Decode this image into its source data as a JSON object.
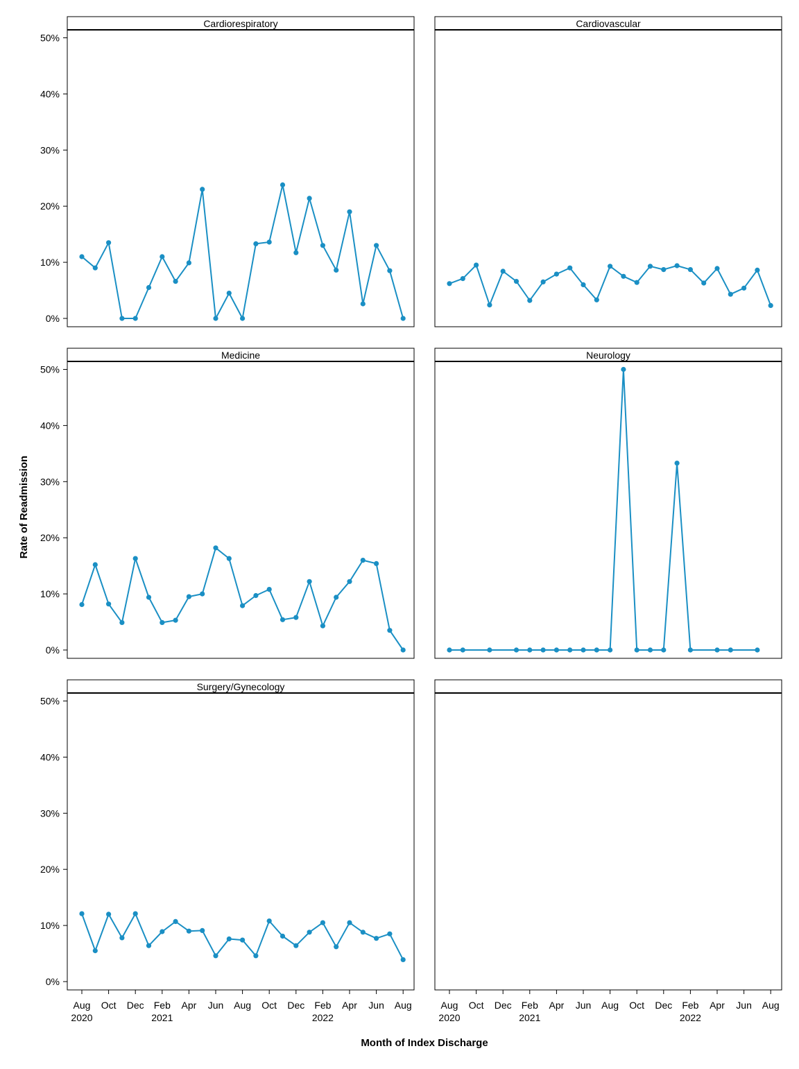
{
  "chart_data": {
    "type": "line",
    "ylabel": "Rate of Readmission",
    "xlabel": "Month of Index Discharge",
    "y_unit": "%",
    "ylim": [
      0,
      50
    ],
    "y_ticks": [
      0,
      10,
      20,
      30,
      40,
      50
    ],
    "y_tick_labels": [
      "0%",
      "10%",
      "20%",
      "30%",
      "40%",
      "50%"
    ],
    "x_months": [
      "2020-08",
      "2020-09",
      "2020-10",
      "2020-11",
      "2020-12",
      "2021-01",
      "2021-02",
      "2021-03",
      "2021-04",
      "2021-05",
      "2021-06",
      "2021-07",
      "2021-08",
      "2021-09",
      "2021-10",
      "2021-11",
      "2021-12",
      "2022-01",
      "2022-02",
      "2022-03",
      "2022-04",
      "2022-05",
      "2022-06",
      "2022-07",
      "2022-08"
    ],
    "x_ticks": [
      {
        "month": "2020-08",
        "label": "Aug",
        "year": "2020"
      },
      {
        "month": "2020-10",
        "label": "Oct",
        "year": ""
      },
      {
        "month": "2020-12",
        "label": "Dec",
        "year": ""
      },
      {
        "month": "2021-02",
        "label": "Feb",
        "year": "2021"
      },
      {
        "month": "2021-04",
        "label": "Apr",
        "year": ""
      },
      {
        "month": "2021-06",
        "label": "Jun",
        "year": ""
      },
      {
        "month": "2021-08",
        "label": "Aug",
        "year": ""
      },
      {
        "month": "2021-10",
        "label": "Oct",
        "year": ""
      },
      {
        "month": "2021-12",
        "label": "Dec",
        "year": ""
      },
      {
        "month": "2022-02",
        "label": "Feb",
        "year": "2022"
      },
      {
        "month": "2022-04",
        "label": "Apr",
        "year": ""
      },
      {
        "month": "2022-06",
        "label": "Jun",
        "year": ""
      },
      {
        "month": "2022-08",
        "label": "Aug",
        "year": ""
      }
    ],
    "line_color": "#1a8fc4",
    "panels": [
      {
        "name": "Cardiorespiratory",
        "values": [
          11.0,
          9.0,
          13.5,
          0.0,
          0.0,
          5.5,
          11.0,
          6.6,
          9.9,
          23.0,
          0.0,
          4.5,
          0.0,
          13.3,
          13.6,
          23.8,
          11.7,
          21.4,
          13.0,
          8.6,
          19.0,
          2.6,
          13.0,
          8.5,
          0.0
        ]
      },
      {
        "name": "Cardiovascular",
        "values": [
          6.2,
          7.1,
          9.5,
          2.4,
          8.4,
          6.6,
          3.2,
          6.5,
          7.9,
          9.0,
          6.0,
          3.3,
          9.3,
          7.5,
          6.4,
          9.3,
          8.7,
          9.4,
          8.7,
          6.3,
          8.9,
          4.3,
          5.4,
          8.6,
          2.3
        ]
      },
      {
        "name": "Medicine",
        "values": [
          8.1,
          15.2,
          8.2,
          4.9,
          16.3,
          9.4,
          4.9,
          5.3,
          9.5,
          10.0,
          18.2,
          16.3,
          7.9,
          9.7,
          10.8,
          5.4,
          5.8,
          12.2,
          4.3,
          9.4,
          12.2,
          16.0,
          15.4,
          3.5,
          0.0
        ]
      },
      {
        "name": "Neurology",
        "values": [
          0.0,
          0.0,
          null,
          0.0,
          null,
          0.0,
          0.0,
          0.0,
          0.0,
          0.0,
          0.0,
          0.0,
          0.0,
          50.0,
          0.0,
          0.0,
          0.0,
          33.3,
          0.0,
          null,
          0.0,
          0.0,
          null,
          0.0,
          null
        ]
      },
      {
        "name": "Surgery/Gynecology",
        "values": [
          12.1,
          5.5,
          12.0,
          7.8,
          12.1,
          6.4,
          8.9,
          10.7,
          9.0,
          9.1,
          4.6,
          7.6,
          7.4,
          4.6,
          10.8,
          8.1,
          6.4,
          8.8,
          10.5,
          6.2,
          10.5,
          8.8,
          7.7,
          8.5,
          3.9
        ]
      },
      {
        "name": "",
        "values": []
      }
    ]
  }
}
